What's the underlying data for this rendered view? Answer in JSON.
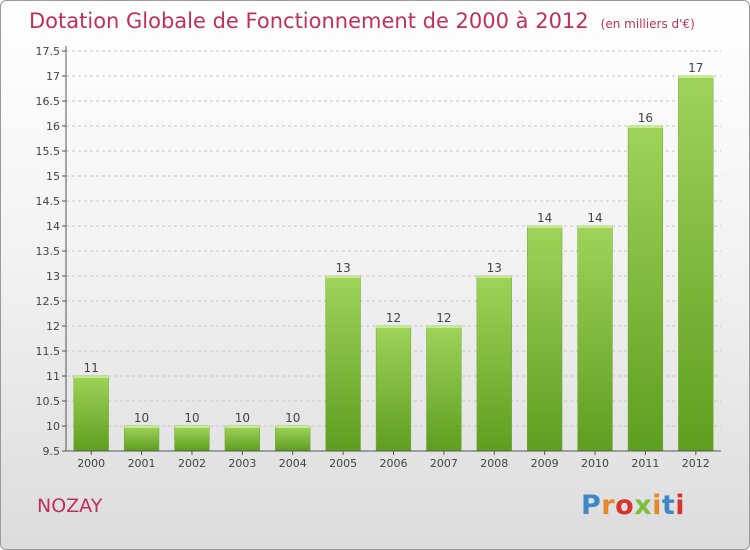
{
  "header": {
    "title": "Dotation Globale de Fonctionnement de 2000 à 2012",
    "unit": "(en milliers d'€)"
  },
  "footer": {
    "commune": "NOZAY",
    "logo_text": "Proxiti",
    "logo_colors": [
      "#3f88c5",
      "#e8872a",
      "#d8342b",
      "#7bbf3a",
      "#e8872a",
      "#3f88c5",
      "#d8342b"
    ]
  },
  "chart_data": {
    "type": "bar",
    "title": "Dotation Globale de Fonctionnement de 2000 à 2012",
    "subtitle": "(en milliers d'€)",
    "categories": [
      "2000",
      "2001",
      "2002",
      "2003",
      "2004",
      "2005",
      "2006",
      "2007",
      "2008",
      "2009",
      "2010",
      "2011",
      "2012"
    ],
    "values": [
      11,
      10,
      10,
      10,
      10,
      13,
      12,
      12,
      13,
      14,
      14,
      16,
      17
    ],
    "data_labels": [
      "11",
      "10",
      "10",
      "10",
      "10",
      "13",
      "12",
      "12",
      "13",
      "14",
      "14",
      "16",
      "17"
    ],
    "ylim": [
      9.5,
      17.5
    ],
    "yticks": [
      9.5,
      10,
      10.5,
      11,
      11.5,
      12,
      12.5,
      13,
      13.5,
      14,
      14.5,
      15,
      15.5,
      16,
      16.5,
      17,
      17.5
    ],
    "ytick_labels": [
      "9.5",
      "10",
      "10.5",
      "11",
      "11.5",
      "12",
      "12.5",
      "13",
      "13.5",
      "14",
      "14.5",
      "15",
      "15.5",
      "16",
      "16.5",
      "17",
      "17.5"
    ],
    "grid": true,
    "bar_color": "#7ab93b"
  }
}
